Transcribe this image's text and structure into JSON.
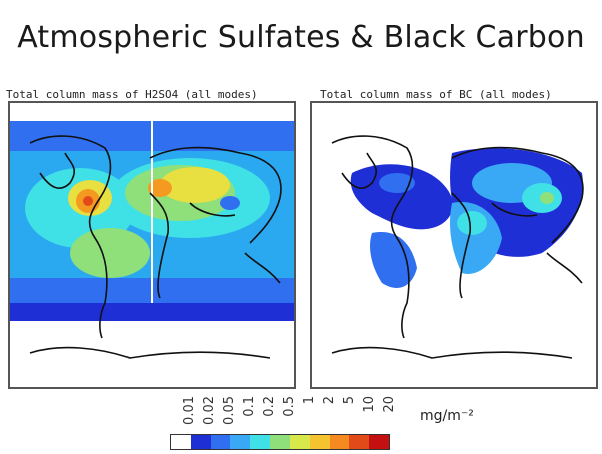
{
  "title": "Atmospheric Sulfates & Black Carbon",
  "panels": [
    {
      "label": "Total column mass of H2SO4 (all modes)",
      "map": "sulfate"
    },
    {
      "label": "Total column mass of BC (all modes)",
      "map": "black-carbon"
    }
  ],
  "colorbar": {
    "ticks": [
      "0.01",
      "0.02",
      "0.05",
      "0.1",
      "0.2",
      "0.5",
      "1",
      "2",
      "5",
      "10",
      "20"
    ],
    "unit": "mg/m⁻²",
    "colors": [
      "#ffffff",
      "#1f2fd6",
      "#2f6ff0",
      "#3aa9f5",
      "#3fe0e6",
      "#8fe07a",
      "#d8e84a",
      "#f5c230",
      "#f58a20",
      "#e24a1a",
      "#c41010"
    ]
  },
  "palette": {
    "ocean_low": "#1f3fe0",
    "ocean_mid": "#2aa8f0",
    "cyan": "#3fe0e6",
    "green": "#8fe07a",
    "yellow": "#e8e040",
    "orange": "#f59a20",
    "red": "#e24a1a",
    "white": "#ffffff",
    "coast": "#111111"
  }
}
